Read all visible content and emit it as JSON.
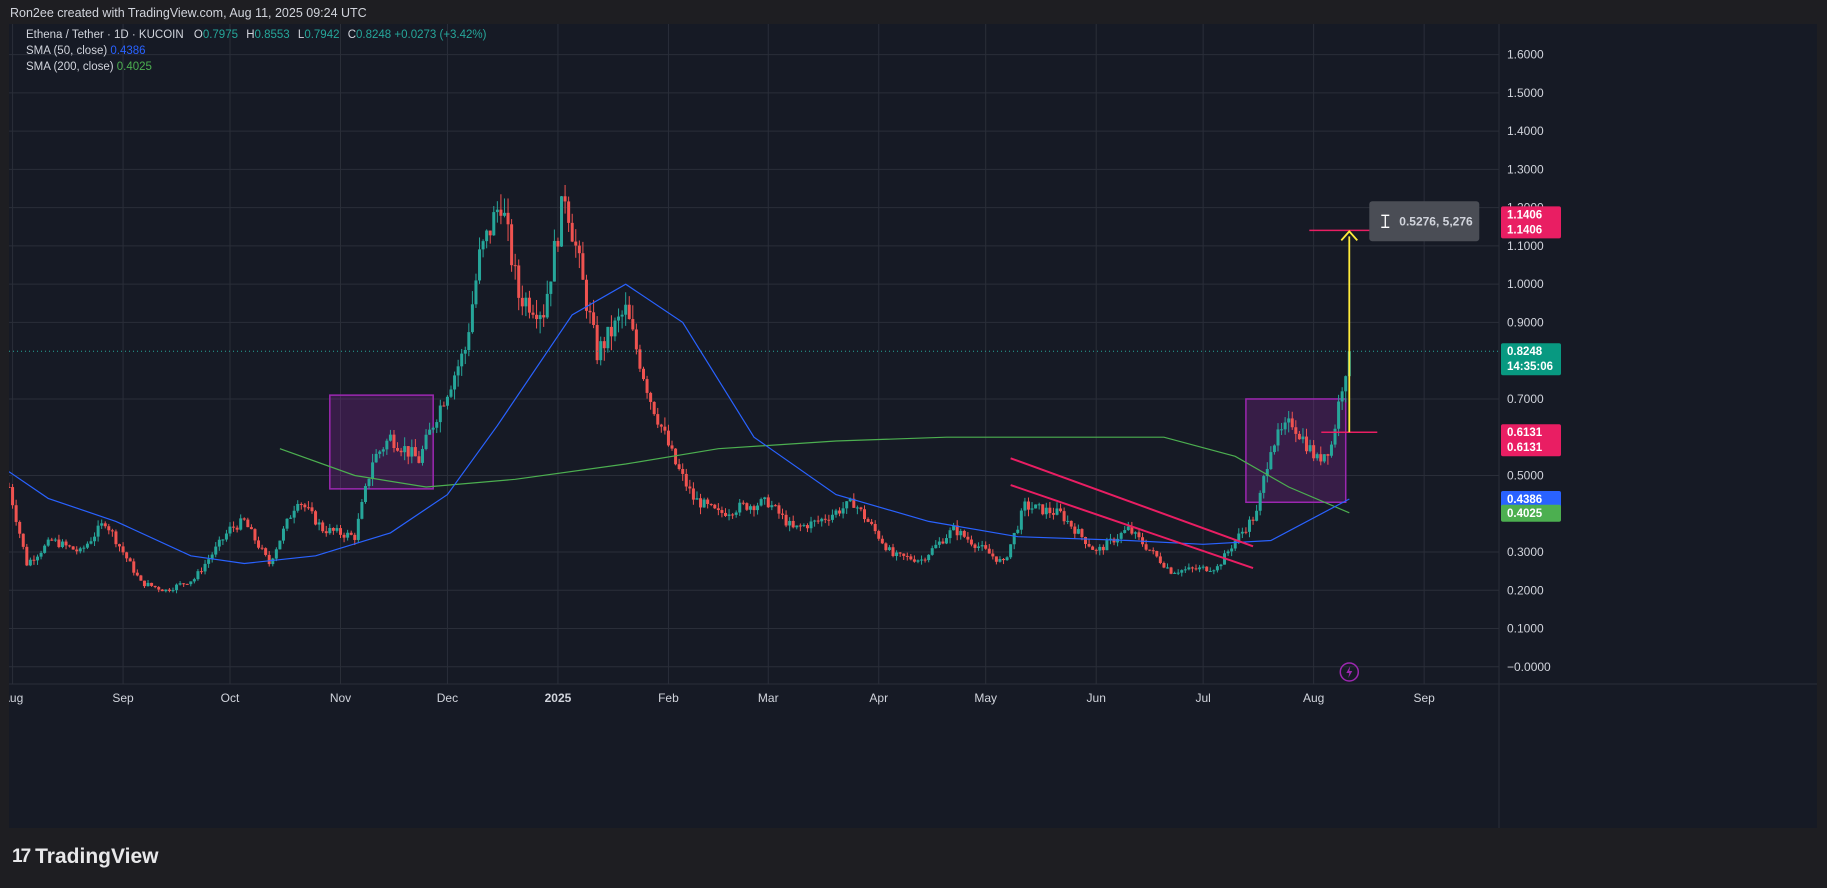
{
  "header": {
    "credit": "Ron2ee created with TradingView.com, Aug 11, 2025 09:24 UTC"
  },
  "legend": {
    "symbol": "Ethena / Tether · 1D · KUCOIN",
    "ohlc": {
      "o_label": "O",
      "o": "0.7975",
      "h_label": "H",
      "h": "0.8553",
      "l_label": "L",
      "l": "0.7942",
      "c_label": "C",
      "c": "0.8248",
      "change": "+0.0273 (+3.42%)"
    },
    "sma50": {
      "label": "SMA (50, close)",
      "value": "0.4386"
    },
    "sma200": {
      "label": "SMA (200, close)",
      "value": "0.4025"
    }
  },
  "footer": {
    "brand": "TradingView"
  },
  "colors": {
    "up": "#26a69a",
    "down": "#ef5350",
    "sma50": "#2962ff",
    "sma200": "#4caf50",
    "box": "#9c27b0",
    "channel": "#e91e63",
    "arrow": "#ffeb3b",
    "grid": "#2a2e39"
  },
  "chart_data": {
    "type": "candlestick",
    "y_axis_ticks": [
      "1.6000",
      "1.5000",
      "1.4000",
      "1.3000",
      "1.2000",
      "1.1000",
      "1.0000",
      "0.9000",
      "0.7000",
      "0.5000",
      "0.3000",
      "0.2000",
      "0.1000",
      "−0.0000"
    ],
    "y_tick_values": [
      1.6,
      1.5,
      1.4,
      1.3,
      1.2,
      1.1,
      1.0,
      0.9,
      0.7,
      0.5,
      0.3,
      0.2,
      0.1,
      0.0
    ],
    "ylim": [
      -0.045,
      1.68
    ],
    "x_axis_labels": [
      {
        "label": "Aug",
        "date": "2024-08-01"
      },
      {
        "label": "Sep",
        "date": "2024-09-01"
      },
      {
        "label": "Oct",
        "date": "2024-10-01"
      },
      {
        "label": "Nov",
        "date": "2024-11-01"
      },
      {
        "label": "Dec",
        "date": "2024-12-01"
      },
      {
        "label": "2025",
        "date": "2025-01-01"
      },
      {
        "label": "Feb",
        "date": "2025-02-01"
      },
      {
        "label": "Mar",
        "date": "2025-03-01"
      },
      {
        "label": "Apr",
        "date": "2025-04-01"
      },
      {
        "label": "May",
        "date": "2025-05-01"
      },
      {
        "label": "Jun",
        "date": "2025-06-01"
      },
      {
        "label": "Jul",
        "date": "2025-07-01"
      },
      {
        "label": "Aug",
        "date": "2025-08-01"
      },
      {
        "label": "Sep",
        "date": "2025-09-01"
      }
    ],
    "xlim": [
      "2024-07-31",
      "2025-09-22"
    ],
    "price_path": [
      {
        "date": "2024-07-31",
        "price": 0.47
      },
      {
        "date": "2024-08-05",
        "price": 0.27
      },
      {
        "date": "2024-08-12",
        "price": 0.33
      },
      {
        "date": "2024-08-20",
        "price": 0.3
      },
      {
        "date": "2024-08-27",
        "price": 0.38
      },
      {
        "date": "2024-09-06",
        "price": 0.22
      },
      {
        "date": "2024-09-13",
        "price": 0.2
      },
      {
        "date": "2024-09-21",
        "price": 0.23
      },
      {
        "date": "2024-10-01",
        "price": 0.36
      },
      {
        "date": "2024-10-05",
        "price": 0.38
      },
      {
        "date": "2024-10-12",
        "price": 0.27
      },
      {
        "date": "2024-10-20",
        "price": 0.44
      },
      {
        "date": "2024-10-27",
        "price": 0.36
      },
      {
        "date": "2024-11-05",
        "price": 0.34
      },
      {
        "date": "2024-11-10",
        "price": 0.54
      },
      {
        "date": "2024-11-15",
        "price": 0.6
      },
      {
        "date": "2024-11-23",
        "price": 0.54
      },
      {
        "date": "2024-11-28",
        "price": 0.66
      },
      {
        "date": "2024-12-06",
        "price": 0.83
      },
      {
        "date": "2024-12-10",
        "price": 1.07
      },
      {
        "date": "2024-12-16",
        "price": 1.22
      },
      {
        "date": "2024-12-21",
        "price": 0.97
      },
      {
        "date": "2024-12-28",
        "price": 0.93
      },
      {
        "date": "2025-01-03",
        "price": 1.24
      },
      {
        "date": "2025-01-08",
        "price": 1.0
      },
      {
        "date": "2025-01-12",
        "price": 0.82
      },
      {
        "date": "2025-01-20",
        "price": 0.93
      },
      {
        "date": "2025-01-27",
        "price": 0.7
      },
      {
        "date": "2025-02-03",
        "price": 0.53
      },
      {
        "date": "2025-02-08",
        "price": 0.44
      },
      {
        "date": "2025-02-15",
        "price": 0.4
      },
      {
        "date": "2025-02-22",
        "price": 0.42
      },
      {
        "date": "2025-03-01",
        "price": 0.43
      },
      {
        "date": "2025-03-08",
        "price": 0.36
      },
      {
        "date": "2025-03-15",
        "price": 0.38
      },
      {
        "date": "2025-03-25",
        "price": 0.43
      },
      {
        "date": "2025-04-05",
        "price": 0.29
      },
      {
        "date": "2025-04-13",
        "price": 0.28
      },
      {
        "date": "2025-04-22",
        "price": 0.36
      },
      {
        "date": "2025-05-06",
        "price": 0.27
      },
      {
        "date": "2025-05-12",
        "price": 0.42
      },
      {
        "date": "2025-05-22",
        "price": 0.4
      },
      {
        "date": "2025-06-01",
        "price": 0.3
      },
      {
        "date": "2025-06-10",
        "price": 0.36
      },
      {
        "date": "2025-06-22",
        "price": 0.25
      },
      {
        "date": "2025-07-05",
        "price": 0.26
      },
      {
        "date": "2025-07-10",
        "price": 0.33
      },
      {
        "date": "2025-07-16",
        "price": 0.4
      },
      {
        "date": "2025-07-20",
        "price": 0.58
      },
      {
        "date": "2025-07-26",
        "price": 0.64
      },
      {
        "date": "2025-08-02",
        "price": 0.54
      },
      {
        "date": "2025-08-06",
        "price": 0.58
      },
      {
        "date": "2025-08-09",
        "price": 0.74
      },
      {
        "date": "2025-08-11",
        "price": 0.8248
      }
    ],
    "sma50_path": [
      {
        "date": "2024-07-31",
        "value": 0.51
      },
      {
        "date": "2024-08-11",
        "value": 0.44
      },
      {
        "date": "2024-08-30",
        "value": 0.38
      },
      {
        "date": "2024-09-20",
        "value": 0.29
      },
      {
        "date": "2024-10-05",
        "value": 0.27
      },
      {
        "date": "2024-10-25",
        "value": 0.29
      },
      {
        "date": "2024-11-15",
        "value": 0.35
      },
      {
        "date": "2024-12-01",
        "value": 0.45
      },
      {
        "date": "2024-12-15",
        "value": 0.63
      },
      {
        "date": "2025-01-05",
        "value": 0.92
      },
      {
        "date": "2025-01-20",
        "value": 1.0
      },
      {
        "date": "2025-02-05",
        "value": 0.9
      },
      {
        "date": "2025-02-25",
        "value": 0.6
      },
      {
        "date": "2025-03-20",
        "value": 0.45
      },
      {
        "date": "2025-04-15",
        "value": 0.38
      },
      {
        "date": "2025-05-10",
        "value": 0.34
      },
      {
        "date": "2025-06-10",
        "value": 0.33
      },
      {
        "date": "2025-07-01",
        "value": 0.32
      },
      {
        "date": "2025-07-20",
        "value": 0.33
      },
      {
        "date": "2025-08-11",
        "value": 0.4386
      }
    ],
    "sma200_path": [
      {
        "date": "2024-10-15",
        "value": 0.57
      },
      {
        "date": "2024-11-05",
        "value": 0.5
      },
      {
        "date": "2024-11-25",
        "value": 0.47
      },
      {
        "date": "2024-12-20",
        "value": 0.49
      },
      {
        "date": "2025-01-20",
        "value": 0.53
      },
      {
        "date": "2025-02-15",
        "value": 0.57
      },
      {
        "date": "2025-03-20",
        "value": 0.59
      },
      {
        "date": "2025-04-20",
        "value": 0.6
      },
      {
        "date": "2025-05-20",
        "value": 0.6
      },
      {
        "date": "2025-06-20",
        "value": 0.6
      },
      {
        "date": "2025-07-10",
        "value": 0.55
      },
      {
        "date": "2025-07-25",
        "value": 0.47
      },
      {
        "date": "2025-08-11",
        "value": 0.4025
      }
    ],
    "annotations": {
      "boxes": [
        {
          "x0": "2024-10-29",
          "x1": "2024-11-27",
          "y0": 0.465,
          "y1": 0.71
        },
        {
          "x0": "2025-07-13",
          "x1": "2025-08-10",
          "y0": 0.43,
          "y1": 0.7
        }
      ],
      "channel_lines": [
        {
          "x0": "2025-05-08",
          "y0": 0.545,
          "x1": "2025-07-15",
          "y1": 0.315
        },
        {
          "x0": "2025-05-08",
          "y0": 0.475,
          "x1": "2025-07-15",
          "y1": 0.258
        }
      ],
      "measure": {
        "x": "2025-08-11",
        "from": 0.6131,
        "to": 1.1406,
        "label": "0.5276, 5,276"
      }
    },
    "price_tags": [
      {
        "value": 1.1406,
        "labels": [
          "1.1406",
          "1.1406"
        ],
        "color": "#e91e63"
      },
      {
        "value": 0.8248,
        "labels": [
          "0.8248",
          "14:35:06"
        ],
        "color": "#089981"
      },
      {
        "value": 0.6131,
        "labels": [
          "0.6131",
          "0.6131"
        ],
        "color": "#e91e63"
      },
      {
        "value": 0.4386,
        "labels": [
          "0.4386"
        ],
        "color": "#2962ff"
      },
      {
        "value": 0.4025,
        "labels": [
          "0.4025"
        ],
        "color": "#4caf50"
      }
    ],
    "last_price": 0.8248
  }
}
